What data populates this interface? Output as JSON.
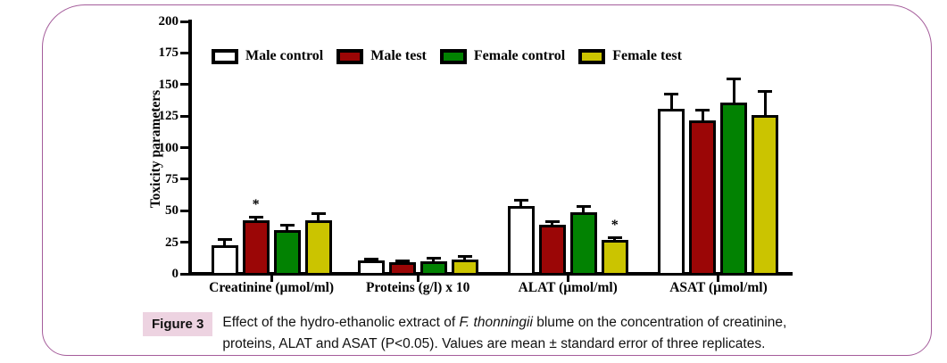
{
  "figure": {
    "label": "Figure 3",
    "caption_prefix": "Effect of the hydro-ethanolic extract of ",
    "caption_italic": "F. thonningii",
    "caption_suffix": " blume on the concentration of creatinine, proteins, ALAT and ASAT (P<0.05). Values are mean ± standard error of three replicates."
  },
  "colors": {
    "frame_border": "#a55d9b",
    "figure_label_bg": "#edd3e1",
    "axis": "#000000",
    "male_control": "#ffffff",
    "male_test": "#9b0606",
    "female_control": "#028202",
    "female_test": "#cbc400"
  },
  "chart_data": {
    "type": "bar",
    "title": "",
    "xlabel": "",
    "ylabel": "Toxicity parameters",
    "ylim": [
      0,
      200
    ],
    "ytick_step": 25,
    "grid": false,
    "legend_position": "top-inside",
    "categories": [
      "Creatinine (µmol/ml)",
      "Proteins (g/l) x 10",
      "ALAT (µmol/ml)",
      "ASAT (µmol/ml)"
    ],
    "series": [
      {
        "name": "Male control",
        "color": "#ffffff",
        "values": [
          24,
          12,
          55,
          132
        ],
        "errors": [
          6,
          2,
          6,
          13
        ]
      },
      {
        "name": "Male test",
        "color": "#9b0606",
        "values": [
          44,
          10.5,
          40,
          123
        ],
        "errors": [
          3,
          2,
          4,
          9
        ]
      },
      {
        "name": "Female control",
        "color": "#028202",
        "values": [
          36,
          11.5,
          50,
          137
        ],
        "errors": [
          5,
          3.5,
          6,
          20
        ]
      },
      {
        "name": "Female test",
        "color": "#cbc400",
        "values": [
          44,
          13,
          28,
          127
        ],
        "errors": [
          6,
          3,
          3,
          20
        ]
      }
    ],
    "annotations": [
      {
        "category_index": 0,
        "series_index": 1,
        "text": "*"
      },
      {
        "category_index": 2,
        "series_index": 3,
        "text": "*"
      }
    ]
  }
}
